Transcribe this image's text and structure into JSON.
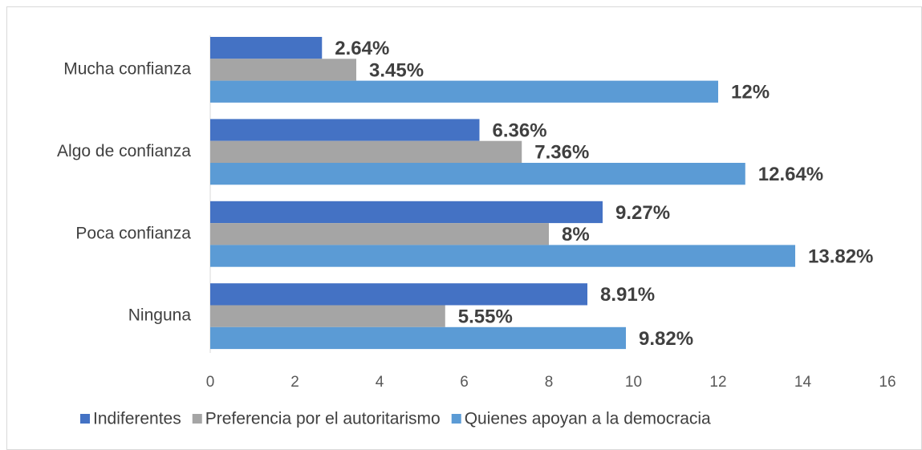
{
  "chart_data": {
    "type": "bar",
    "orientation": "horizontal",
    "categories": [
      "Mucha confianza",
      "Algo de confianza",
      "Poca confianza",
      "Ninguna"
    ],
    "series": [
      {
        "name": "Indiferentes",
        "color": "#4472c4",
        "values": [
          2.64,
          6.36,
          9.27,
          8.91
        ],
        "value_labels": [
          "2.64%",
          "6.36%",
          "9.27%",
          "8.91%"
        ]
      },
      {
        "name": "Preferencia por el autoritarismo",
        "color": "#a5a5a5",
        "values": [
          3.45,
          7.36,
          8,
          5.55
        ],
        "value_labels": [
          "3.45%",
          "7.36%",
          "8%",
          "5.55%"
        ]
      },
      {
        "name": "Quienes apoyan a la democracia",
        "color": "#5b9bd5",
        "values": [
          12,
          12.64,
          13.82,
          9.82
        ],
        "value_labels": [
          "12%",
          "12.64%",
          "13.82%",
          "9.82%"
        ]
      }
    ],
    "xlim": [
      0,
      16
    ],
    "xticks": [
      0,
      2,
      4,
      6,
      8,
      10,
      12,
      14,
      16
    ],
    "grid": false,
    "legend": "bottom"
  }
}
